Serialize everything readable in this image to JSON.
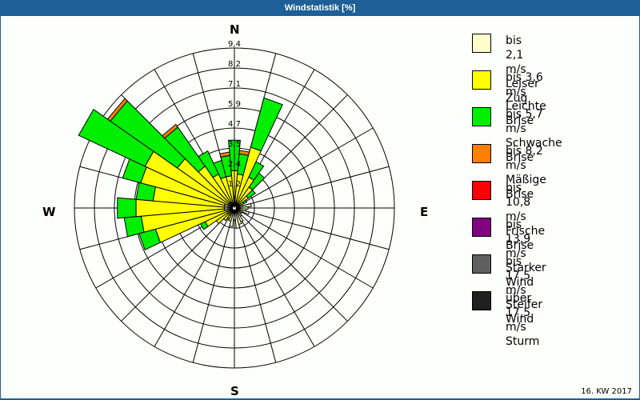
{
  "header": {
    "title": "Windstatistik [%]"
  },
  "compass": {
    "n": "N",
    "e": "E",
    "s": "S",
    "w": "W"
  },
  "footer": {
    "period": "16. KW 2017"
  },
  "legend": [
    {
      "range": "bis 2,1 m/s",
      "name": "Leiser Zug",
      "color": "#ffffcc"
    },
    {
      "range": "bis 3,6 m/s",
      "name": "Leichte Brise",
      "color": "#ffff00"
    },
    {
      "range": "bis 5,7 m/s",
      "name": "Schwache Brise",
      "color": "#00ee00"
    },
    {
      "range": "bis 8,2 m/s",
      "name": "Mäßige Brise",
      "color": "#ff8000"
    },
    {
      "range": "bis 10,8 m/s",
      "name": "Frische Brise",
      "color": "#ff0000"
    },
    {
      "range": "bis 13,9 m/s",
      "name": "Starker Wind",
      "color": "#800080"
    },
    {
      "range": "bis 17,5 m/s",
      "name": "Steifer Wind",
      "color": "#606060"
    },
    {
      "range": "über 17,5 m/s",
      "name": "Sturm",
      "color": "#202020"
    }
  ],
  "chart_data": {
    "type": "polar-bar",
    "title": "Windstatistik [%]",
    "subtitle": "16. KW 2017",
    "unit": "%",
    "radial_ticks": [
      "1,2",
      "2,4",
      "3,5",
      "4,7",
      "5,9",
      "7,1",
      "8,2",
      "9,4"
    ],
    "radial_max": 9.4,
    "sector_width_deg": 10,
    "series_names": [
      "bis 2,1 m/s",
      "bis 3,6 m/s",
      "bis 5,7 m/s",
      "bis 8,2 m/s"
    ],
    "sectors": [
      {
        "dir": 0,
        "values": [
          0.4,
          1.8,
          1.8,
          0.0
        ]
      },
      {
        "dir": 10,
        "values": [
          0.4,
          1.6,
          1.2,
          0.2
        ]
      },
      {
        "dir": 20,
        "values": [
          0.4,
          3.3,
          3.0,
          0.0
        ]
      },
      {
        "dir": 30,
        "values": [
          0.3,
          1.7,
          1.0,
          0.0
        ]
      },
      {
        "dir": 40,
        "values": [
          0.3,
          1.2,
          1.0,
          0.0
        ]
      },
      {
        "dir": 50,
        "values": [
          0.3,
          0.7,
          0.5,
          0.0
        ]
      },
      {
        "dir": 60,
        "values": [
          0.3,
          0.3,
          0.2,
          0.0
        ]
      },
      {
        "dir": 70,
        "values": [
          0.5,
          0.0,
          0.0,
          0.0
        ]
      },
      {
        "dir": 80,
        "values": [
          1.0,
          0.0,
          0.0,
          0.0
        ]
      },
      {
        "dir": 90,
        "values": [
          0.8,
          0.0,
          0.0,
          0.0
        ]
      },
      {
        "dir": 100,
        "values": [
          0.7,
          0.0,
          0.0,
          0.0
        ]
      },
      {
        "dir": 110,
        "values": [
          0.9,
          0.0,
          0.0,
          0.0
        ]
      },
      {
        "dir": 120,
        "values": [
          0.5,
          0.0,
          0.0,
          0.0
        ]
      },
      {
        "dir": 130,
        "values": [
          0.5,
          0.0,
          0.0,
          0.0
        ]
      },
      {
        "dir": 140,
        "values": [
          0.6,
          0.0,
          0.0,
          0.0
        ]
      },
      {
        "dir": 150,
        "values": [
          0.9,
          0.0,
          0.0,
          0.0
        ]
      },
      {
        "dir": 160,
        "values": [
          1.0,
          0.0,
          0.0,
          0.0
        ]
      },
      {
        "dir": 170,
        "values": [
          1.2,
          0.0,
          0.0,
          0.0
        ]
      },
      {
        "dir": 180,
        "values": [
          0.7,
          0.0,
          0.0,
          0.0
        ]
      },
      {
        "dir": 190,
        "values": [
          1.1,
          0.0,
          0.0,
          0.0
        ]
      },
      {
        "dir": 200,
        "values": [
          0.8,
          0.0,
          0.0,
          0.0
        ]
      },
      {
        "dir": 210,
        "values": [
          0.5,
          0.2,
          0.0,
          0.0
        ]
      },
      {
        "dir": 220,
        "values": [
          0.4,
          0.5,
          0.0,
          0.0
        ]
      },
      {
        "dir": 230,
        "values": [
          0.5,
          0.8,
          0.0,
          0.0
        ]
      },
      {
        "dir": 240,
        "values": [
          0.4,
          1.5,
          0.3,
          0.0
        ]
      },
      {
        "dir": 250,
        "values": [
          0.5,
          4.3,
          1.0,
          0.0
        ]
      },
      {
        "dir": 260,
        "values": [
          0.6,
          4.9,
          1.0,
          0.0
        ]
      },
      {
        "dir": 270,
        "values": [
          0.6,
          5.2,
          1.1,
          0.0
        ]
      },
      {
        "dir": 280,
        "values": [
          0.6,
          4.2,
          1.0,
          0.0
        ]
      },
      {
        "dir": 290,
        "values": [
          0.6,
          5.1,
          1.1,
          0.0
        ]
      },
      {
        "dir": 300,
        "values": [
          0.4,
          5.4,
          4.3,
          0.0
        ]
      },
      {
        "dir": 310,
        "values": [
          0.4,
          3.7,
          4.8,
          0.2
        ]
      },
      {
        "dir": 320,
        "values": [
          0.4,
          2.6,
          2.8,
          0.2
        ]
      },
      {
        "dir": 330,
        "values": [
          0.4,
          1.8,
          1.5,
          0.0
        ]
      },
      {
        "dir": 340,
        "values": [
          0.3,
          1.6,
          1.0,
          0.0
        ]
      },
      {
        "dir": 350,
        "values": [
          0.3,
          1.6,
          1.2,
          0.2
        ]
      }
    ],
    "legend_position": "right",
    "grid": true
  }
}
